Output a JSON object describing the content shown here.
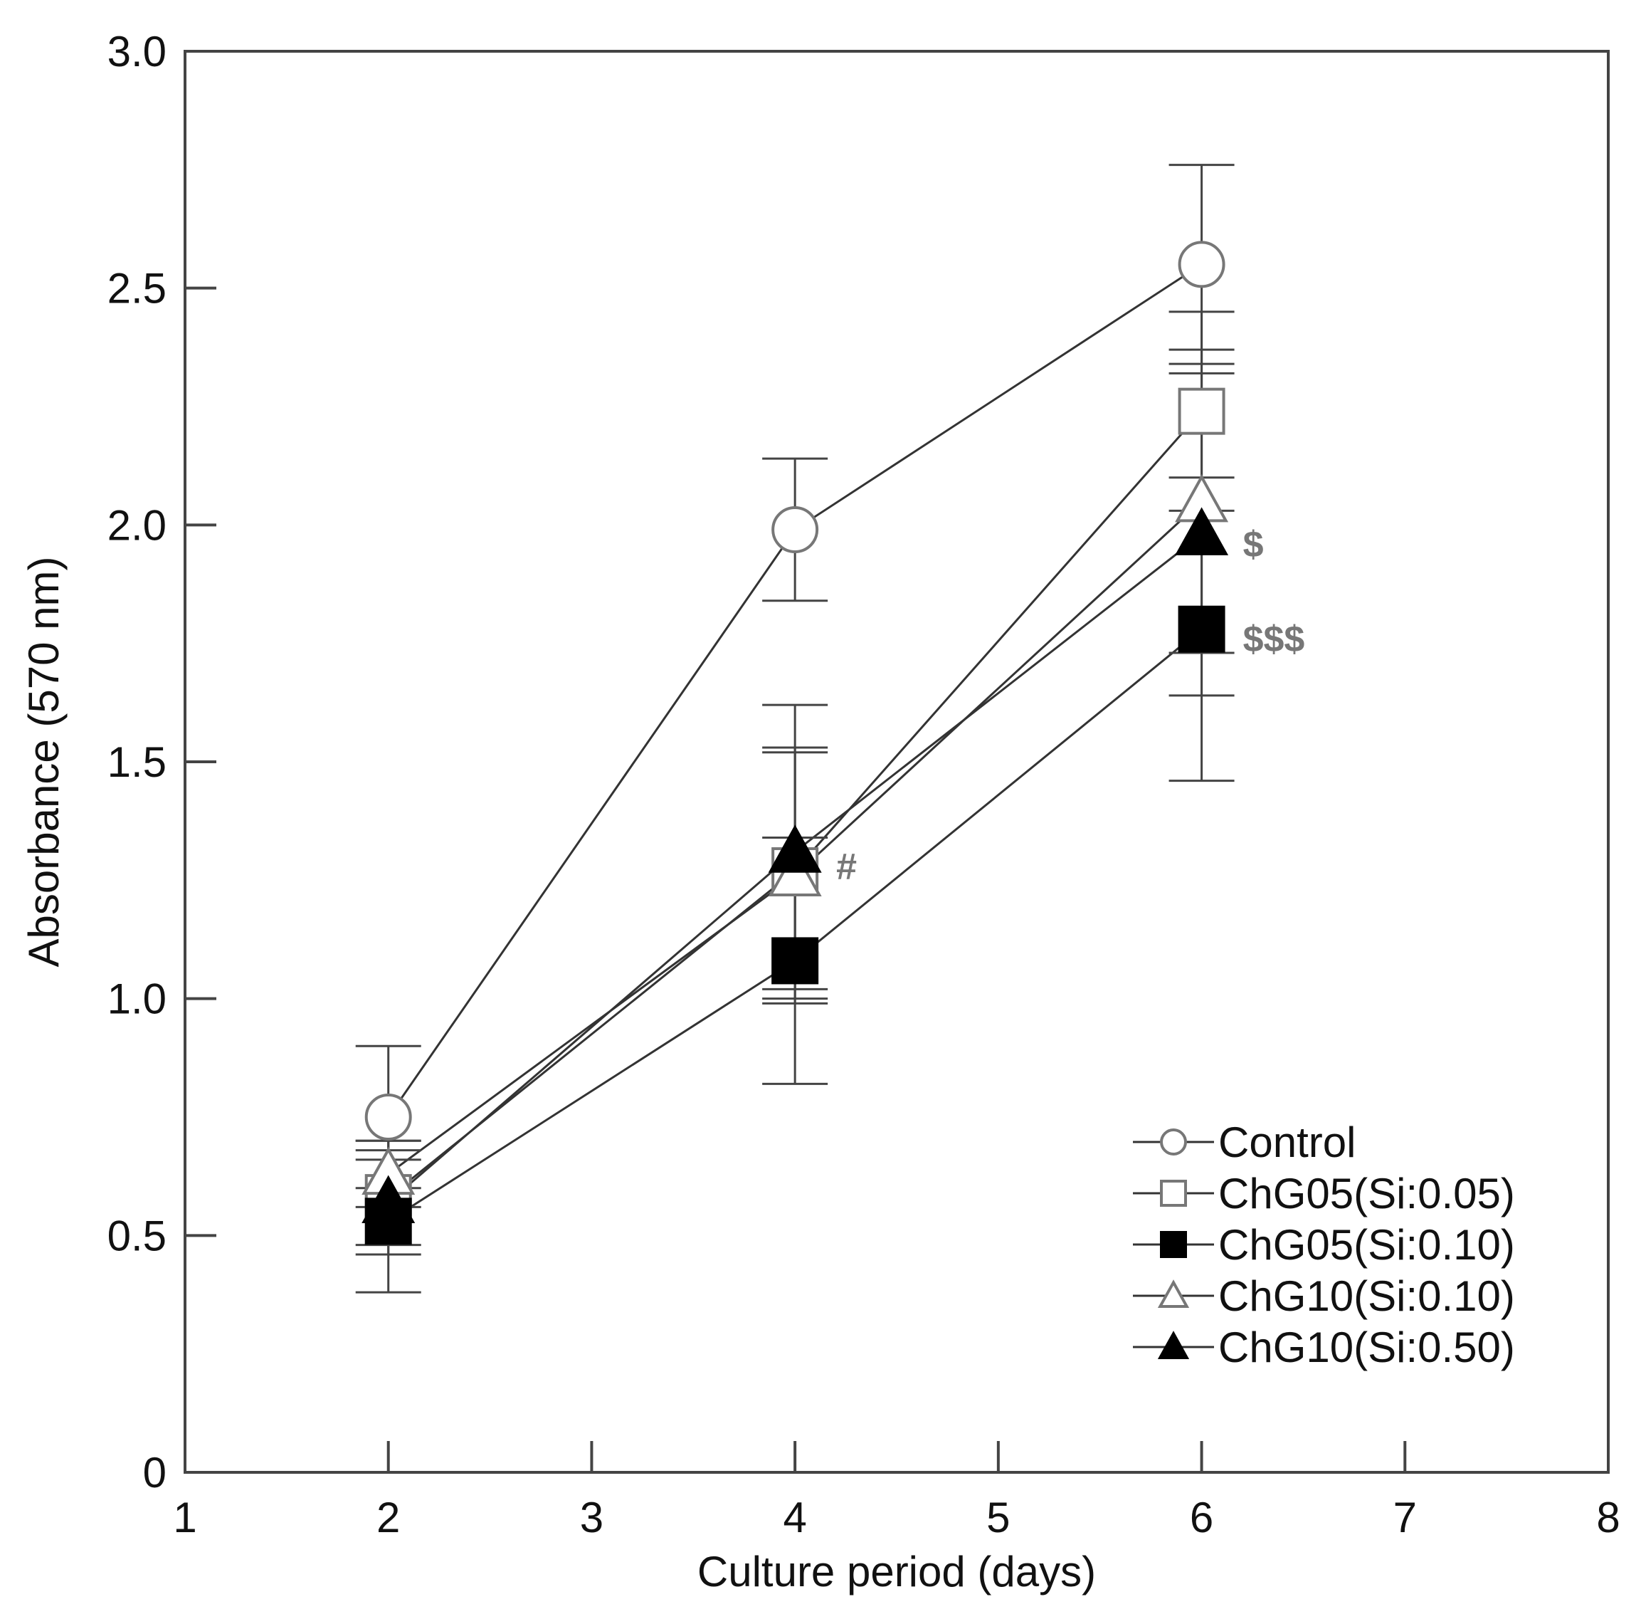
{
  "chart_data": {
    "type": "line",
    "title": "",
    "xlabel": "Culture period (days)",
    "ylabel": "Absorbance (570 nm)",
    "xlim": [
      1,
      8
    ],
    "ylim": [
      0,
      3.0
    ],
    "x_ticks": [
      1,
      2,
      3,
      4,
      5,
      6,
      7,
      8
    ],
    "x_tick_labels": [
      "1",
      "2",
      "3",
      "4",
      "5",
      "6",
      "7",
      "8"
    ],
    "y_ticks": [
      0,
      0.5,
      1.0,
      1.5,
      2.0,
      2.5,
      3.0
    ],
    "y_tick_labels": [
      "0",
      "0.5",
      "1.0",
      "1.5",
      "2.0",
      "2.5",
      "3.0"
    ],
    "grid": false,
    "legend_position": "bottom-right",
    "x": [
      2,
      4,
      6
    ],
    "series": [
      {
        "name": "Control",
        "marker": "circle",
        "filled": false,
        "color": "#555555",
        "values": [
          0.75,
          1.99,
          2.55
        ],
        "errors": [
          0.15,
          0.15,
          0.21
        ]
      },
      {
        "name": "ChG05(Si:0.05)",
        "marker": "square",
        "filled": false,
        "color": "#555555",
        "values": [
          0.58,
          1.27,
          2.24
        ],
        "errors": [
          0.12,
          0.25,
          0.21
        ]
      },
      {
        "name": "ChG05(Si:0.10)",
        "marker": "square",
        "filled": true,
        "color": "#000000",
        "values": [
          0.53,
          1.08,
          1.78
        ],
        "errors": [
          0.15,
          0.26,
          0.32
        ]
      },
      {
        "name": "ChG10(Si:0.10)",
        "marker": "triangle",
        "filled": false,
        "color": "#555555",
        "values": [
          0.63,
          1.26,
          2.05
        ],
        "errors": [
          0.07,
          0.27,
          0.32
        ]
      },
      {
        "name": "ChG10(Si:0.50)",
        "marker": "triangle",
        "filled": true,
        "color": "#000000",
        "values": [
          0.57,
          1.31,
          1.98
        ],
        "errors": [
          0.09,
          0.31,
          0.34
        ]
      }
    ],
    "annotations": [
      {
        "text": "#",
        "x": 4,
        "y": 1.28
      },
      {
        "text": "$",
        "x": 6,
        "y": 1.96
      },
      {
        "text": "$$$",
        "x": 6,
        "y": 1.76
      }
    ]
  }
}
